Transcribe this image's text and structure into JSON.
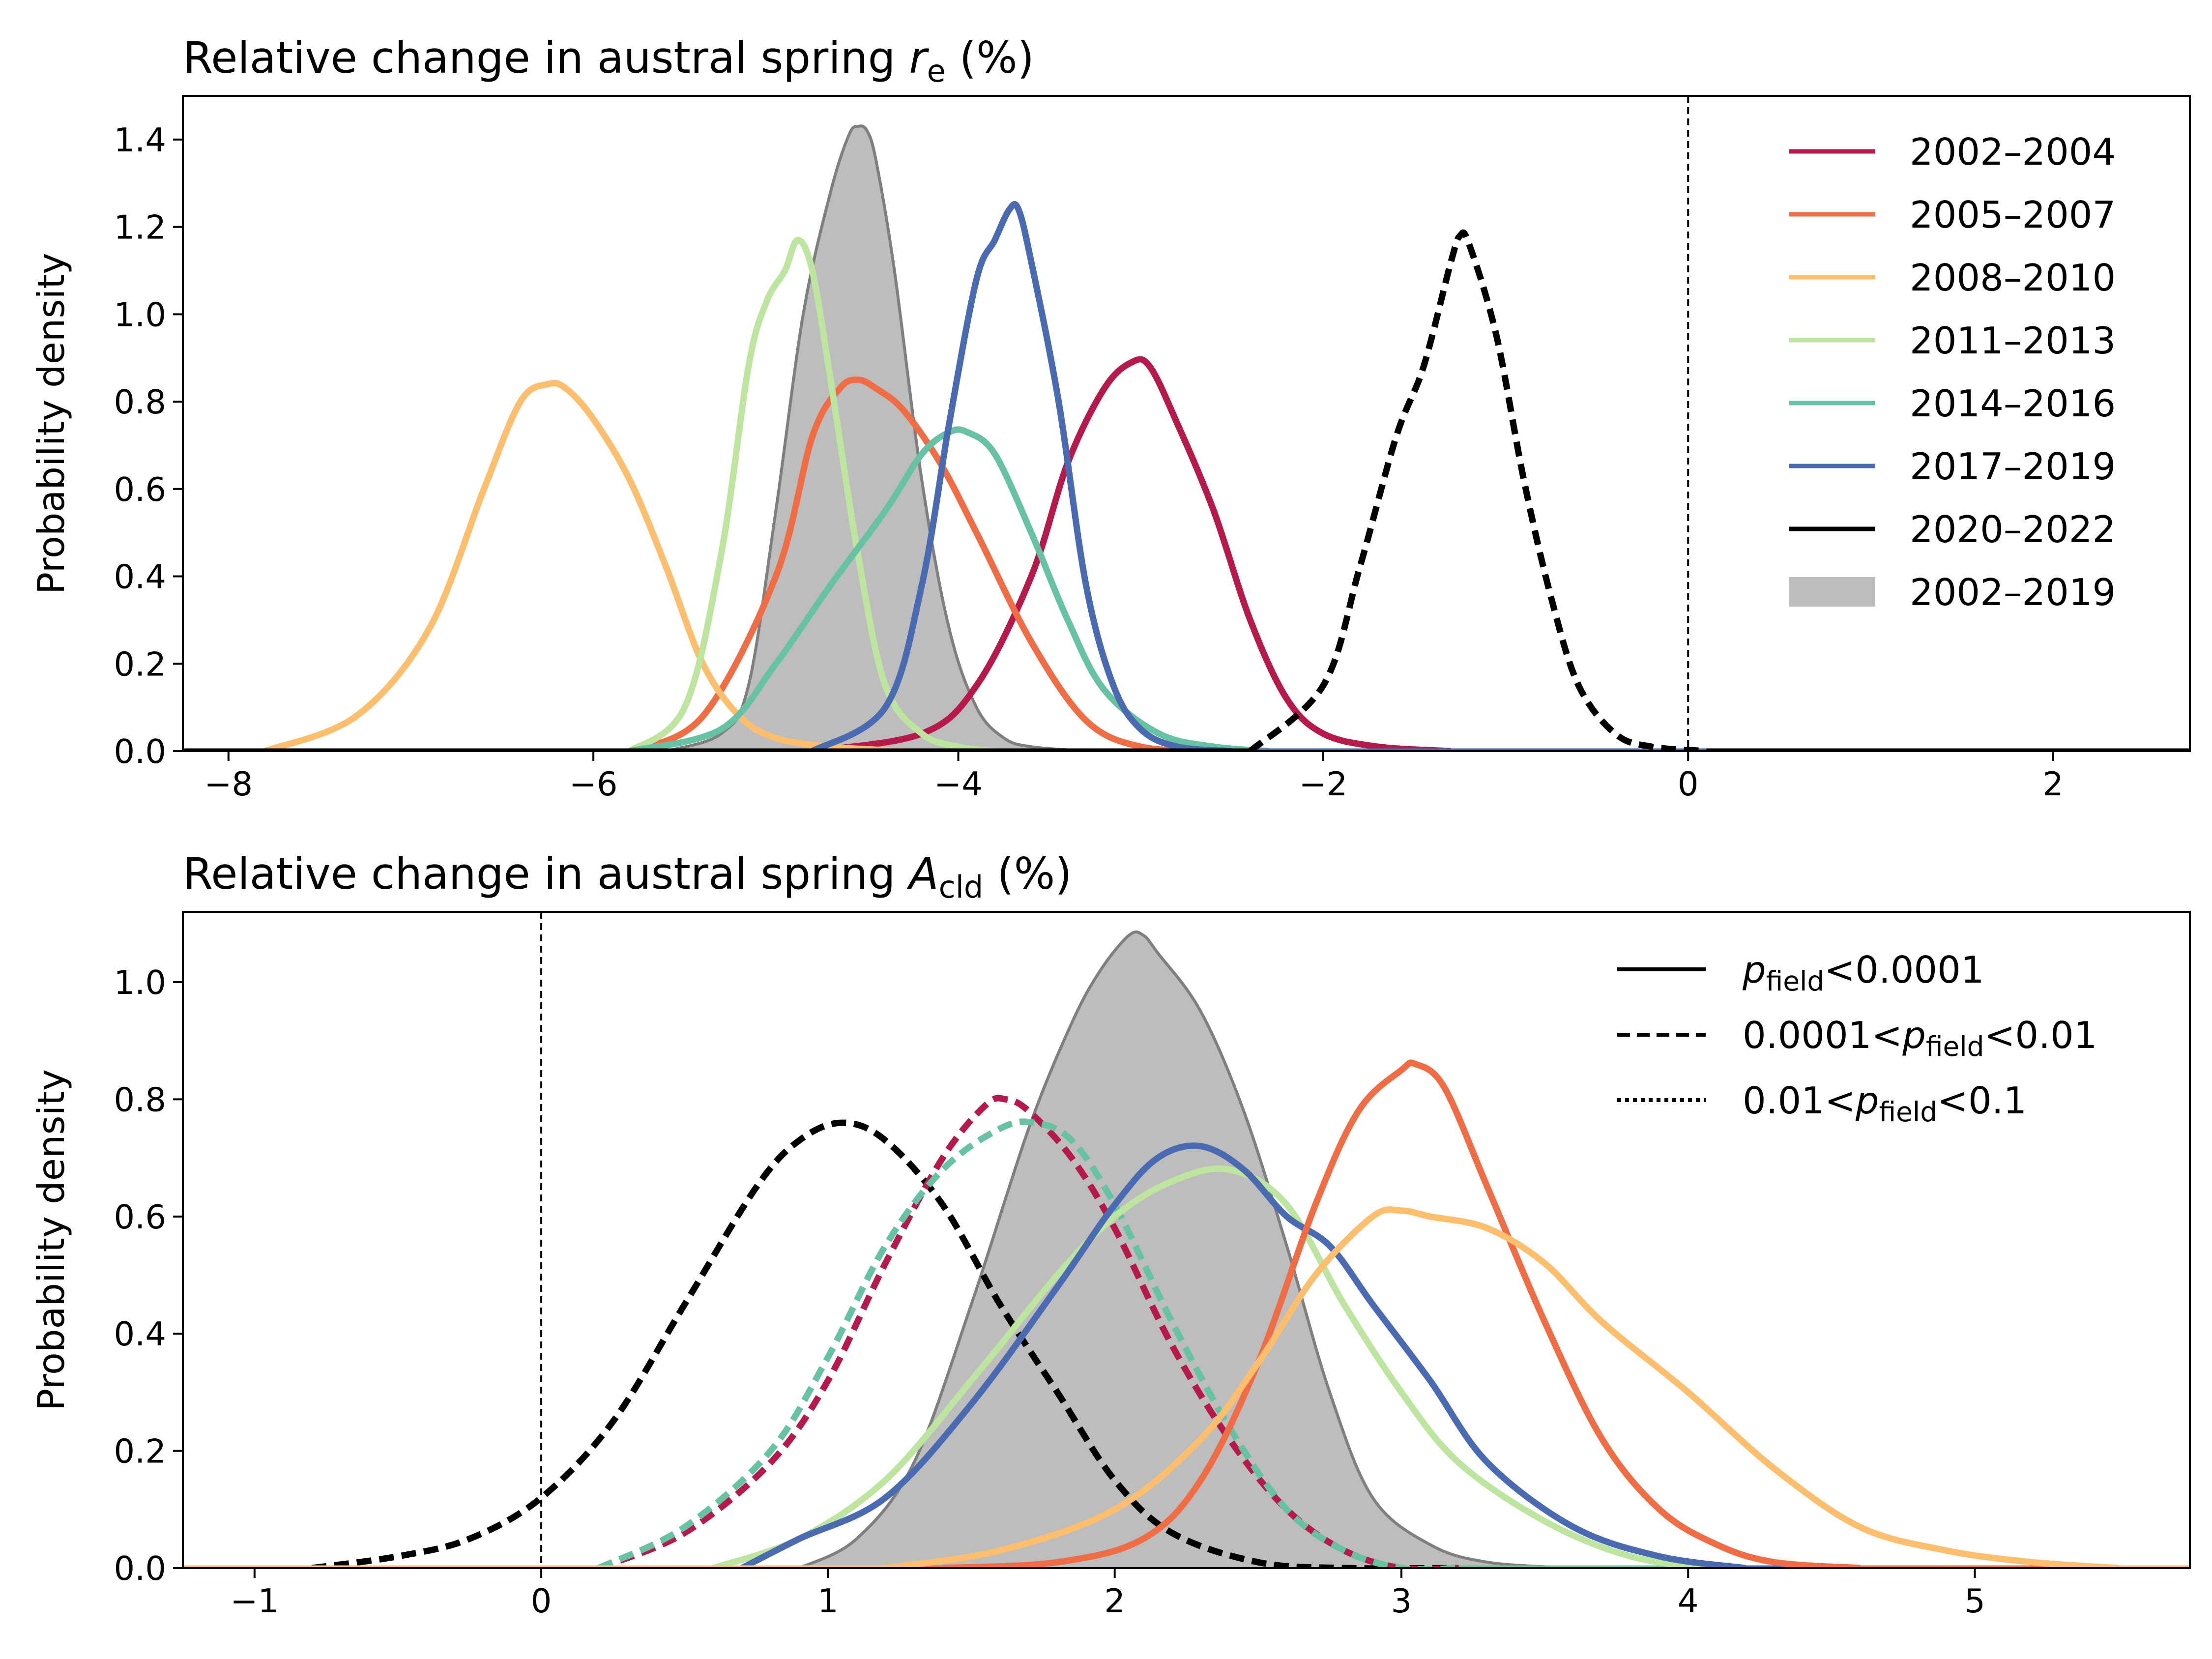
{
  "chart_data": [
    {
      "type": "area",
      "title": "Relative change in austral spring r_e (%)",
      "title_parts": {
        "prefix": "Relative change in austral spring ",
        "symbol": "r",
        "subscript": "e",
        "suffix": " (%)"
      },
      "xlabel": "",
      "ylabel": "Probability density",
      "xlim": [
        -8.25,
        2.75
      ],
      "ylim": [
        0,
        1.5
      ],
      "xticks": [
        -8,
        -6,
        -4,
        -2,
        0,
        2
      ],
      "xtick_labels": [
        "−8",
        "−6",
        "−4",
        "−2",
        "0",
        "2"
      ],
      "yticks": [
        0,
        0.2,
        0.4,
        0.6,
        0.8,
        1.0,
        1.2,
        1.4
      ],
      "ytick_labels": [
        "0.0",
        "0.2",
        "0.4",
        "0.6",
        "0.8",
        "1.0",
        "1.2",
        "1.4"
      ],
      "grid": false,
      "legend_position": "top-right",
      "reference_line_x": 0,
      "legend": [
        {
          "label": "2002–2004",
          "color": "#b51a4a",
          "kind": "line"
        },
        {
          "label": "2005–2007",
          "color": "#f06c45",
          "kind": "line"
        },
        {
          "label": "2008–2010",
          "color": "#fdbe6e",
          "kind": "line"
        },
        {
          "label": "2011–2013",
          "color": "#bde5a0",
          "kind": "line"
        },
        {
          "label": "2014–2016",
          "color": "#67c2a4",
          "kind": "line"
        },
        {
          "label": "2017–2019",
          "color": "#4a6ab2",
          "kind": "line"
        },
        {
          "label": "2020–2022",
          "color": "#000000",
          "kind": "line"
        },
        {
          "label": "2002–2019",
          "color": "#bdbdbd",
          "kind": "fill"
        }
      ],
      "series": [
        {
          "name": "2002–2019",
          "style": "fill",
          "color": "#bdbdbd",
          "edge": "#7f7f7f",
          "x": [
            -5.6,
            -5.3,
            -5.15,
            -5.0,
            -4.85,
            -4.7,
            -4.6,
            -4.55,
            -4.5,
            -4.45,
            -4.35,
            -4.2,
            -4.05,
            -3.9,
            -3.75,
            -3.6,
            -3.3
          ],
          "y": [
            0.0,
            0.04,
            0.15,
            0.55,
            1.0,
            1.28,
            1.41,
            1.43,
            1.42,
            1.35,
            1.1,
            0.62,
            0.28,
            0.1,
            0.03,
            0.01,
            0.0
          ]
        },
        {
          "name": "2002–2004",
          "style": "solid",
          "color": "#b51a4a",
          "x": [
            -4.8,
            -4.2,
            -3.9,
            -3.6,
            -3.4,
            -3.2,
            -3.05,
            -2.95,
            -2.8,
            -2.6,
            -2.4,
            -2.2,
            -2.0,
            -1.7,
            -1.3
          ],
          "y": [
            0.0,
            0.04,
            0.15,
            0.4,
            0.66,
            0.83,
            0.89,
            0.88,
            0.75,
            0.55,
            0.3,
            0.12,
            0.04,
            0.01,
            0.0
          ]
        },
        {
          "name": "2005–2007",
          "style": "solid",
          "color": "#f06c45",
          "x": [
            -5.8,
            -5.4,
            -5.0,
            -4.8,
            -4.65,
            -4.55,
            -4.45,
            -4.3,
            -4.1,
            -3.9,
            -3.6,
            -3.3,
            -3.0,
            -2.6
          ],
          "y": [
            0.0,
            0.08,
            0.4,
            0.72,
            0.83,
            0.85,
            0.83,
            0.78,
            0.66,
            0.5,
            0.25,
            0.07,
            0.01,
            0.0
          ]
        },
        {
          "name": "2008–2010",
          "style": "solid",
          "color": "#fdbe6e",
          "x": [
            -7.8,
            -7.3,
            -6.9,
            -6.6,
            -6.4,
            -6.25,
            -6.15,
            -6.0,
            -5.8,
            -5.6,
            -5.4,
            -5.2,
            -5.0,
            -4.7,
            -4.3
          ],
          "y": [
            0.0,
            0.08,
            0.28,
            0.6,
            0.8,
            0.84,
            0.83,
            0.76,
            0.62,
            0.42,
            0.2,
            0.08,
            0.03,
            0.01,
            0.0
          ]
        },
        {
          "name": "2011–2013",
          "style": "solid",
          "color": "#bde5a0",
          "x": [
            -5.8,
            -5.5,
            -5.3,
            -5.15,
            -5.05,
            -4.95,
            -4.88,
            -4.8,
            -4.7,
            -4.55,
            -4.4,
            -4.2,
            -4.0,
            -3.8
          ],
          "y": [
            0.0,
            0.1,
            0.45,
            0.88,
            1.03,
            1.1,
            1.17,
            1.1,
            0.85,
            0.45,
            0.15,
            0.04,
            0.01,
            0.0
          ]
        },
        {
          "name": "2014–2016",
          "style": "solid",
          "color": "#67c2a4",
          "x": [
            -5.8,
            -5.3,
            -5.0,
            -4.7,
            -4.4,
            -4.2,
            -4.05,
            -3.95,
            -3.8,
            -3.6,
            -3.4,
            -3.2,
            -2.9,
            -2.6,
            -2.3
          ],
          "y": [
            0.0,
            0.05,
            0.2,
            0.38,
            0.55,
            0.68,
            0.73,
            0.73,
            0.68,
            0.5,
            0.3,
            0.14,
            0.04,
            0.01,
            0.0
          ]
        },
        {
          "name": "2017–2019",
          "style": "solid",
          "color": "#4a6ab2",
          "x": [
            -4.8,
            -4.4,
            -4.2,
            -4.05,
            -3.9,
            -3.8,
            -3.72,
            -3.67,
            -3.6,
            -3.45,
            -3.3,
            -3.15,
            -3.0,
            -2.8,
            -2.5
          ],
          "y": [
            0.0,
            0.1,
            0.38,
            0.75,
            1.08,
            1.17,
            1.24,
            1.24,
            1.12,
            0.8,
            0.38,
            0.15,
            0.05,
            0.01,
            0.0
          ]
        },
        {
          "name": "2020–2022",
          "style": "dashed",
          "color": "#000000",
          "x": [
            -2.4,
            -2.0,
            -1.8,
            -1.6,
            -1.45,
            -1.3,
            -1.25,
            -1.2,
            -1.05,
            -0.9,
            -0.75,
            -0.6,
            -0.4,
            -0.2,
            0.1
          ],
          "y": [
            0.0,
            0.15,
            0.42,
            0.72,
            0.88,
            1.12,
            1.18,
            1.16,
            0.95,
            0.62,
            0.35,
            0.15,
            0.04,
            0.01,
            0.0
          ]
        }
      ]
    },
    {
      "type": "area",
      "title": "Relative change in austral spring A_cld (%)",
      "title_parts": {
        "prefix": "Relative change in austral spring ",
        "symbol": "A",
        "subscript": "cld",
        "suffix": " (%)"
      },
      "xlabel": "",
      "ylabel": "Probability density",
      "xlim": [
        -1.25,
        5.75
      ],
      "ylim": [
        0,
        1.12
      ],
      "xticks": [
        -1,
        0,
        1,
        2,
        3,
        4,
        5
      ],
      "xtick_labels": [
        "−1",
        "0",
        "1",
        "2",
        "3",
        "4",
        "5"
      ],
      "yticks": [
        0,
        0.2,
        0.4,
        0.6,
        0.8,
        1.0
      ],
      "ytick_labels": [
        "0.0",
        "0.2",
        "0.4",
        "0.6",
        "0.8",
        "1.0"
      ],
      "grid": false,
      "legend_position": "top-right",
      "reference_line_x": 0,
      "legend": [
        {
          "style": "solid",
          "parts": [
            {
              "t": "p",
              "italic": true
            },
            {
              "t": "field",
              "sub": true
            },
            {
              "t": "<0.0001"
            }
          ]
        },
        {
          "style": "dashed",
          "parts": [
            {
              "t": "0.0001<"
            },
            {
              "t": "p",
              "italic": true
            },
            {
              "t": "field",
              "sub": true
            },
            {
              "t": "<0.01"
            }
          ]
        },
        {
          "style": "dotted",
          "parts": [
            {
              "t": "0.01<"
            },
            {
              "t": "p",
              "italic": true
            },
            {
              "t": "field",
              "sub": true
            },
            {
              "t": "<0.1"
            }
          ]
        }
      ],
      "series": [
        {
          "name": "2002–2019",
          "style": "fill",
          "color": "#bdbdbd",
          "edge": "#7f7f7f",
          "x": [
            0.9,
            1.1,
            1.3,
            1.5,
            1.7,
            1.85,
            1.95,
            2.05,
            2.1,
            2.15,
            2.3,
            2.45,
            2.6,
            2.75,
            2.9,
            3.1,
            3.3,
            3.6
          ],
          "y": [
            0.0,
            0.05,
            0.18,
            0.45,
            0.75,
            0.93,
            1.02,
            1.08,
            1.08,
            1.05,
            0.95,
            0.78,
            0.55,
            0.3,
            0.12,
            0.04,
            0.01,
            0.0
          ]
        },
        {
          "name": "2020–2022",
          "style": "dashed",
          "color": "#000000",
          "x": [
            -0.8,
            -0.5,
            -0.25,
            0.0,
            0.25,
            0.5,
            0.75,
            0.9,
            1.05,
            1.2,
            1.4,
            1.6,
            1.8,
            2.0,
            2.2,
            2.5,
            2.8,
            3.2
          ],
          "y": [
            0.0,
            0.02,
            0.05,
            0.12,
            0.25,
            0.45,
            0.65,
            0.73,
            0.76,
            0.73,
            0.62,
            0.45,
            0.3,
            0.15,
            0.06,
            0.01,
            0.0,
            0.0
          ]
        },
        {
          "name": "2002–2004",
          "style": "dashed",
          "color": "#b51a4a",
          "x": [
            0.2,
            0.5,
            0.8,
            1.0,
            1.2,
            1.4,
            1.55,
            1.62,
            1.7,
            1.85,
            2.0,
            2.2,
            2.4,
            2.6,
            2.8,
            3.0,
            3.2
          ],
          "y": [
            0.0,
            0.06,
            0.18,
            0.32,
            0.52,
            0.7,
            0.79,
            0.8,
            0.78,
            0.7,
            0.58,
            0.38,
            0.22,
            0.1,
            0.03,
            0.0,
            0.0
          ]
        },
        {
          "name": "2014–2016",
          "style": "dashed",
          "color": "#67c2a4",
          "x": [
            0.2,
            0.5,
            0.8,
            1.0,
            1.2,
            1.4,
            1.6,
            1.72,
            1.85,
            2.0,
            2.2,
            2.4,
            2.6,
            2.8,
            3.0,
            3.2
          ],
          "y": [
            0.0,
            0.07,
            0.2,
            0.36,
            0.55,
            0.68,
            0.75,
            0.76,
            0.73,
            0.62,
            0.42,
            0.24,
            0.1,
            0.03,
            0.0,
            0.0
          ]
        },
        {
          "name": "2011–2013",
          "style": "solid",
          "color": "#bde5a0",
          "x": [
            0.6,
            0.9,
            1.2,
            1.5,
            1.8,
            2.0,
            2.2,
            2.4,
            2.6,
            2.8,
            3.0,
            3.2,
            3.5,
            3.8,
            4.1,
            4.4
          ],
          "y": [
            0.0,
            0.05,
            0.15,
            0.32,
            0.5,
            0.6,
            0.66,
            0.68,
            0.62,
            0.45,
            0.3,
            0.18,
            0.08,
            0.02,
            0.0,
            0.0
          ]
        },
        {
          "name": "2017–2019",
          "style": "solid",
          "color": "#4a6ab2",
          "x": [
            0.7,
            0.9,
            1.2,
            1.5,
            1.8,
            2.0,
            2.15,
            2.3,
            2.45,
            2.6,
            2.75,
            2.9,
            3.1,
            3.3,
            3.6,
            3.9,
            4.2
          ],
          "y": [
            0.0,
            0.05,
            0.12,
            0.28,
            0.48,
            0.62,
            0.7,
            0.72,
            0.68,
            0.6,
            0.55,
            0.45,
            0.32,
            0.18,
            0.07,
            0.02,
            0.0
          ]
        },
        {
          "name": "2005–2007",
          "style": "solid",
          "color": "#f06c45",
          "x": [
            1.4,
            1.8,
            2.1,
            2.3,
            2.5,
            2.7,
            2.85,
            3.0,
            3.05,
            3.15,
            3.3,
            3.5,
            3.7,
            3.9,
            4.1,
            4.3,
            4.6
          ],
          "y": [
            0.0,
            0.01,
            0.05,
            0.15,
            0.35,
            0.62,
            0.78,
            0.85,
            0.86,
            0.82,
            0.65,
            0.42,
            0.22,
            0.1,
            0.04,
            0.01,
            0.0
          ]
        },
        {
          "name": "2008–2010",
          "style": "solid",
          "color": "#fdbe6e",
          "x": [
            1.2,
            1.6,
            2.0,
            2.3,
            2.5,
            2.7,
            2.9,
            3.0,
            3.1,
            3.3,
            3.5,
            3.7,
            4.0,
            4.3,
            4.6,
            4.9,
            5.2,
            5.5
          ],
          "y": [
            0.0,
            0.03,
            0.1,
            0.22,
            0.35,
            0.5,
            0.6,
            0.61,
            0.6,
            0.58,
            0.52,
            0.42,
            0.3,
            0.17,
            0.07,
            0.03,
            0.01,
            0.0
          ]
        }
      ]
    }
  ]
}
